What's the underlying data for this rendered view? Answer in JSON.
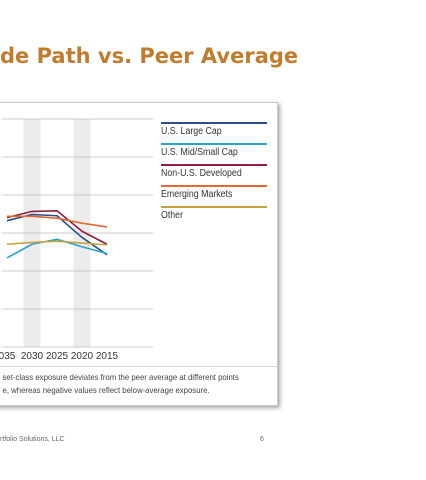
{
  "slide": {
    "title": "de Path vs. Peer Average",
    "footer": "rtfolio Solutions, LLC",
    "page_number": "6"
  },
  "chart_data": {
    "type": "line",
    "title": "",
    "xlabel": "",
    "ylabel": "",
    "x": [
      "035",
      "2030",
      "2025",
      "2020",
      "2015"
    ],
    "x_shaded": [
      "2030",
      "2020"
    ],
    "grid": true,
    "legend_position": "right",
    "series": [
      {
        "name": "U.S. Large Cap",
        "color": "#2b4d8e",
        "values": [
          1.5,
          2.5,
          2.3,
          -1.2,
          -4.0
        ]
      },
      {
        "name": "U.S. Mid/Small Cap",
        "color": "#29a3cf",
        "values": [
          -4.5,
          -2.3,
          -1.5,
          -2.7,
          -3.8
        ]
      },
      {
        "name": "Non-U.S. Developed",
        "color": "#8e1f3e",
        "values": [
          2.0,
          3.0,
          3.1,
          -0.2,
          -2.3
        ]
      },
      {
        "name": "Emerging Markets",
        "color": "#e06a32",
        "values": [
          2.2,
          2.2,
          1.9,
          1.1,
          0.5
        ]
      },
      {
        "name": "Other",
        "color": "#c9a23c",
        "values": [
          -2.3,
          -2.0,
          -1.8,
          -2.1,
          -2.4
        ]
      }
    ]
  },
  "footnote": {
    "line1": "set-class exposure deviates from the peer average at different points",
    "line2": "e, whereas negative values reflect below-average exposure."
  }
}
